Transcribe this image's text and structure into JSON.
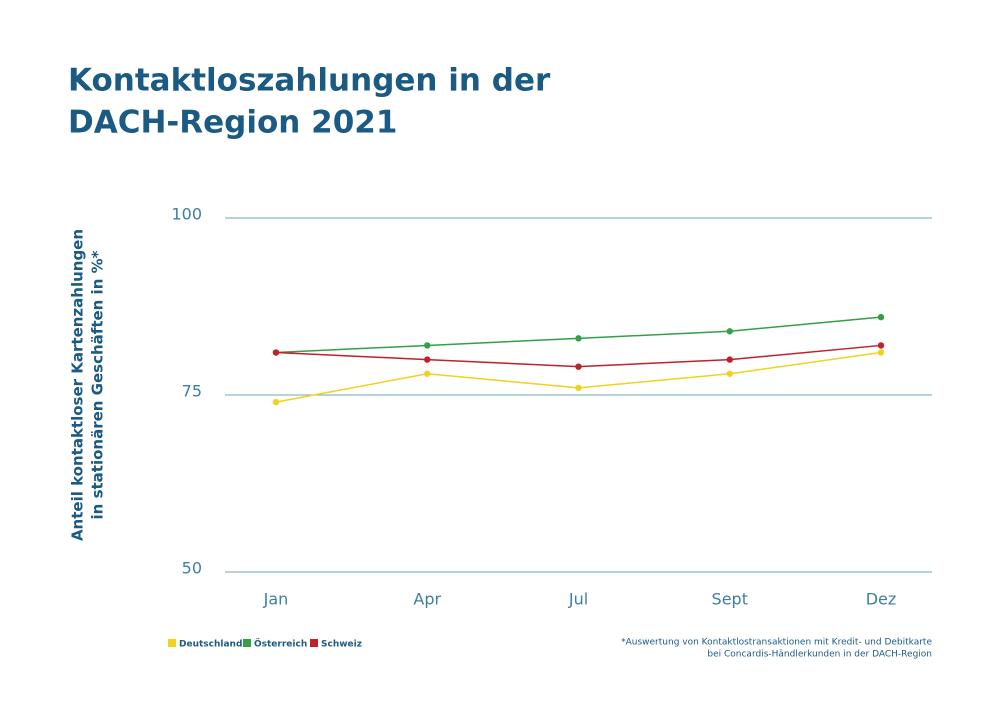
{
  "chart_data": {
    "type": "line",
    "title": [
      "Kontaktloszahlungen in der",
      "DACH-Region 2021"
    ],
    "y_label": [
      "Anteil kontaktloser Kartenzahlungen",
      "in stationären Geschäften in %*"
    ],
    "footnote": [
      "*Auswertung von Kontaktlostransaktionen mit Kredit- und Debitkarte",
      "bei Concardis-Händlerkunden in der DACH-Region"
    ],
    "categories": [
      "Jan",
      "Apr",
      "Jul",
      "Sept",
      "Dez"
    ],
    "series": [
      {
        "name": "Deutschland",
        "color": "#f0d31e",
        "values": [
          74,
          78,
          76,
          78,
          81
        ]
      },
      {
        "name": "Österreich",
        "color": "#34a046",
        "values": [
          81,
          82,
          83,
          84,
          86
        ]
      },
      {
        "name": "Schweiz",
        "color": "#c0212b",
        "values": [
          81,
          80,
          79,
          80,
          82
        ]
      }
    ],
    "ylim": [
      50,
      100
    ],
    "yticks": [
      50,
      75,
      100
    ],
    "grid": true
  }
}
